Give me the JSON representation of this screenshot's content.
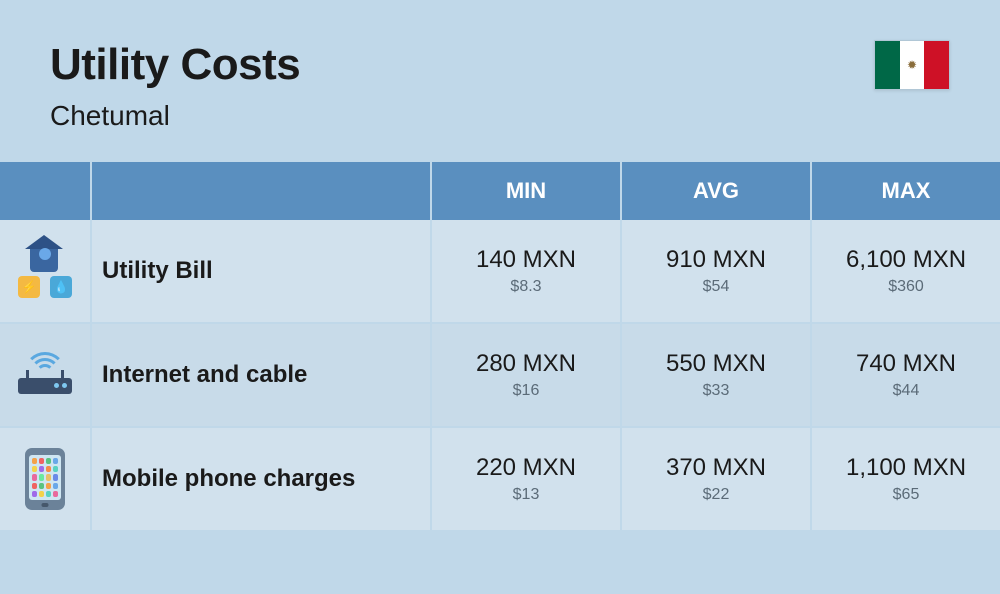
{
  "header": {
    "title": "Utility Costs",
    "subtitle": "Chetumal",
    "flag": {
      "country": "Mexico",
      "colors": {
        "green": "#006847",
        "white": "#ffffff",
        "red": "#ce1126"
      }
    }
  },
  "columns": {
    "min": "MIN",
    "avg": "AVG",
    "max": "MAX"
  },
  "rows": [
    {
      "icon": "utility-bill-icon",
      "label": "Utility Bill",
      "min": {
        "local": "140 MXN",
        "usd": "$8.3"
      },
      "avg": {
        "local": "910 MXN",
        "usd": "$54"
      },
      "max": {
        "local": "6,100 MXN",
        "usd": "$360"
      }
    },
    {
      "icon": "router-icon",
      "label": "Internet and cable",
      "min": {
        "local": "280 MXN",
        "usd": "$16"
      },
      "avg": {
        "local": "550 MXN",
        "usd": "$33"
      },
      "max": {
        "local": "740 MXN",
        "usd": "$44"
      }
    },
    {
      "icon": "mobile-phone-icon",
      "label": "Mobile phone charges",
      "min": {
        "local": "220 MXN",
        "usd": "$13"
      },
      "avg": {
        "local": "370 MXN",
        "usd": "$22"
      },
      "max": {
        "local": "1,100 MXN",
        "usd": "$65"
      }
    }
  ],
  "style": {
    "background": "#c0d8e9",
    "header_bg": "#5a8fbf",
    "header_fg": "#ffffff",
    "row_bg_a": "#d1e1ed",
    "row_bg_b": "#c8dbe9",
    "text_main": "#1a1a1a",
    "text_sub": "#5b6b78",
    "title_fontsize": 44,
    "subtitle_fontsize": 28,
    "th_fontsize": 22,
    "label_fontsize": 24,
    "value_fontsize": 24,
    "subvalue_fontsize": 16,
    "phone_app_colors": [
      "#f4a24a",
      "#f06262",
      "#5ac280",
      "#6aa8e8",
      "#f4d24a",
      "#a06ae8",
      "#f48a4a",
      "#5ad2c2",
      "#e86a9c",
      "#6ae8a0",
      "#e8c06a",
      "#6a8ae8",
      "#f06262",
      "#5ac280",
      "#f4a24a",
      "#6aa8e8",
      "#a06ae8",
      "#f4d24a",
      "#5ad2c2",
      "#e86a9c"
    ]
  }
}
